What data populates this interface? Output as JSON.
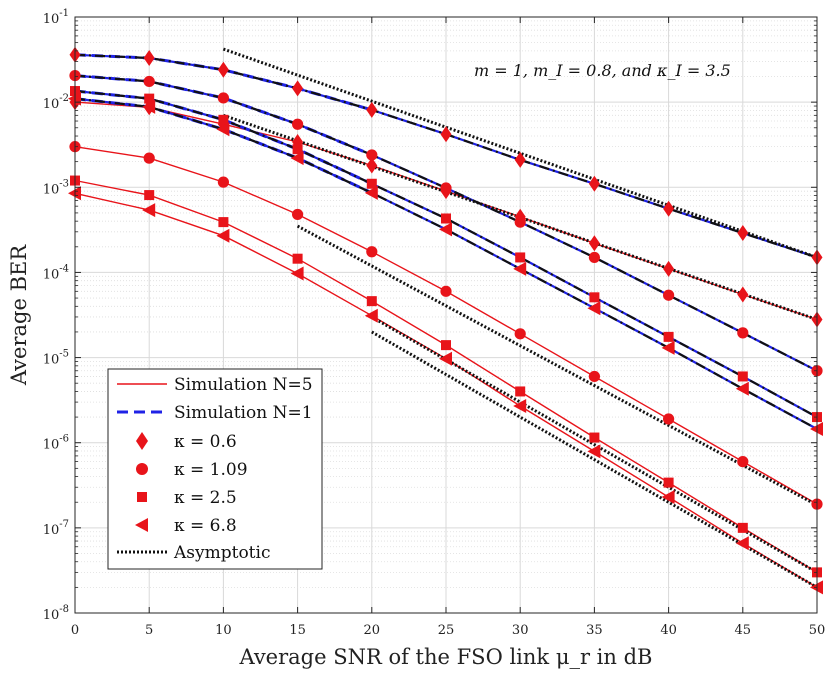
{
  "chart_data": {
    "type": "line",
    "title": "",
    "xlabel": "Average SNR of the FSO link μ_r in dB",
    "ylabel": "Average BER",
    "xlim": [
      0,
      50
    ],
    "ylim_log10": [
      -8,
      -1
    ],
    "y_scale": "log",
    "grid": true,
    "x_ticks": [
      "0",
      "5",
      "10",
      "15",
      "20",
      "25",
      "30",
      "35",
      "40",
      "45",
      "50"
    ],
    "y_tick_exponents": [
      "-8",
      "-7",
      "-6",
      "-5",
      "-4",
      "-3",
      "-2",
      "-1"
    ],
    "y_tick_base": "10",
    "annotation": "m = 1, m_I = 0.8, and κ_I = 3.5",
    "legend_position": "lower-left",
    "legend": [
      {
        "label": "Simulation N=5",
        "style": "red-solid"
      },
      {
        "label": "Simulation N=1",
        "style": "blue-dashed"
      },
      {
        "label": "κ = 0.6",
        "style": "diamond"
      },
      {
        "label": "κ = 1.09",
        "style": "circle"
      },
      {
        "label": "κ = 2.5",
        "style": "square"
      },
      {
        "label": "κ = 6.8",
        "style": "triangle-left"
      },
      {
        "label": "Asymptotic",
        "style": "black-dotted"
      }
    ],
    "colors": {
      "n5": "#e8141a",
      "n1": "#1f22e6",
      "asym": "#111111",
      "analytic": "#111111"
    },
    "x": [
      0,
      5,
      10,
      15,
      20,
      25,
      30,
      35,
      40,
      45,
      50
    ],
    "series": [
      {
        "name": "N=5, κ=0.6",
        "group": "N5",
        "marker": "diamond",
        "values": [
          0.01,
          0.0087,
          0.0055,
          0.0034,
          0.0018,
          0.0009,
          0.00045,
          0.00022,
          0.00011,
          5.5e-05,
          2.8e-05
        ]
      },
      {
        "name": "N=5, κ=1.09",
        "group": "N5",
        "marker": "circle",
        "values": [
          0.003,
          0.0022,
          0.00115,
          0.00048,
          0.000175,
          6e-05,
          1.9e-05,
          6e-06,
          1.9e-06,
          6e-07,
          1.9e-07
        ]
      },
      {
        "name": "N=5, κ=2.5",
        "group": "N5",
        "marker": "square",
        "values": [
          0.0012,
          0.00081,
          0.00039,
          0.000145,
          4.6e-05,
          1.4e-05,
          4e-06,
          1.15e-06,
          3.4e-07,
          1e-07,
          3e-08
        ]
      },
      {
        "name": "N=5, κ=6.8",
        "group": "N5",
        "marker": "triangle-left",
        "values": [
          0.00085,
          0.00054,
          0.00027,
          9.7e-05,
          3.1e-05,
          9.7e-06,
          2.7e-06,
          7.9e-07,
          2.3e-07,
          6.6e-08,
          2e-08
        ]
      },
      {
        "name": "N=1, κ=0.6",
        "group": "N1",
        "marker": "diamond",
        "values": [
          0.036,
          0.033,
          0.024,
          0.0145,
          0.0081,
          0.0042,
          0.0021,
          0.0011,
          0.00056,
          0.00029,
          0.00015
        ]
      },
      {
        "name": "N=1, κ=1.09",
        "group": "N1",
        "marker": "circle",
        "values": [
          0.0205,
          0.0175,
          0.0112,
          0.0055,
          0.0024,
          0.00098,
          0.00039,
          0.00015,
          5.4e-05,
          1.95e-05,
          7e-06
        ]
      },
      {
        "name": "N=1, κ=2.5",
        "group": "N1",
        "marker": "square",
        "values": [
          0.0135,
          0.011,
          0.0062,
          0.0028,
          0.0011,
          0.00043,
          0.00015,
          5.1e-05,
          1.75e-05,
          6e-06,
          2e-06
        ]
      },
      {
        "name": "N=1, κ=6.8",
        "group": "N1",
        "marker": "triangle-left",
        "values": [
          0.011,
          0.0088,
          0.0048,
          0.0022,
          0.00086,
          0.00032,
          0.00011,
          3.8e-05,
          1.3e-05,
          4.3e-06,
          1.45e-06
        ]
      }
    ],
    "asymptotes": [
      {
        "name": "Asymptotic N=1, κ=0.6",
        "x": [
          10,
          50
        ],
        "values": [
          0.042,
          0.00015
        ]
      },
      {
        "name": "Asymptotic N=5, κ=0.6",
        "x": [
          10,
          50
        ],
        "values": [
          0.007,
          2.8e-05
        ]
      },
      {
        "name": "Asymptotic N=5, κ=1.09",
        "x": [
          15,
          50
        ],
        "values": [
          0.00035,
          1.85e-07
        ]
      },
      {
        "name": "Asymptotic N=5, κ=2.5",
        "x": [
          20,
          50
        ],
        "values": [
          3e-05,
          3e-08
        ]
      },
      {
        "name": "Asymptotic N=5, κ=6.8",
        "x": [
          20,
          50
        ],
        "values": [
          2e-05,
          2e-08
        ]
      }
    ]
  }
}
